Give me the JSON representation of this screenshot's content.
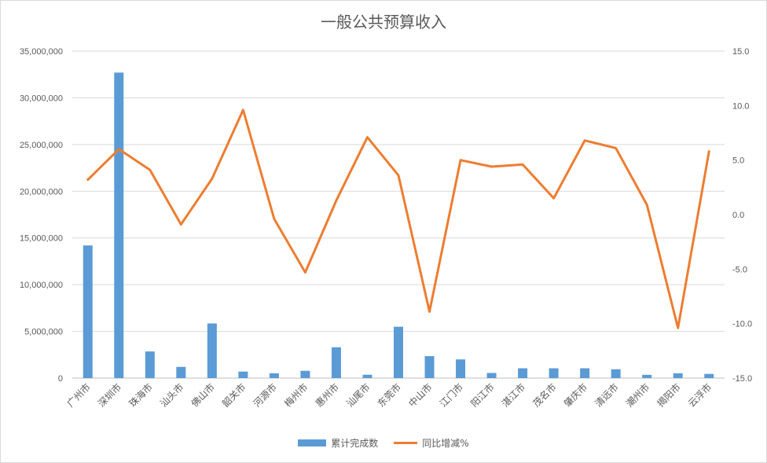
{
  "chart_data": {
    "type": "bar",
    "title": "一般公共预算收入",
    "categories": [
      "广州市",
      "深圳市",
      "珠海市",
      "汕头市",
      "佛山市",
      "韶关市",
      "河源市",
      "梅州市",
      "惠州市",
      "汕尾市",
      "东莞市",
      "中山市",
      "江门市",
      "阳江市",
      "湛江市",
      "茂名市",
      "肇庆市",
      "清远市",
      "潮州市",
      "揭阳市",
      "云浮市"
    ],
    "series": [
      {
        "name": "累计完成数",
        "type": "bar",
        "axis": "left",
        "color": "#5b9bd5",
        "values": [
          14200000,
          32700000,
          2850000,
          1200000,
          5850000,
          700000,
          520000,
          780000,
          3300000,
          360000,
          5500000,
          2350000,
          2000000,
          550000,
          1050000,
          1050000,
          1050000,
          950000,
          350000,
          520000,
          450000
        ]
      },
      {
        "name": "同比增减%",
        "type": "line",
        "axis": "right",
        "color": "#ed7d31",
        "values": [
          3.2,
          6.0,
          4.1,
          -0.9,
          3.3,
          9.6,
          -0.4,
          -5.3,
          1.3,
          7.1,
          3.6,
          -8.9,
          5.0,
          4.4,
          4.6,
          1.5,
          6.8,
          6.1,
          0.9,
          -10.4,
          5.8
        ]
      }
    ],
    "y_left": {
      "ylim": [
        0,
        35000000
      ],
      "ticks": [
        "0",
        "5,000,000",
        "10,000,000",
        "15,000,000",
        "20,000,000",
        "25,000,000",
        "30,000,000",
        "35,000,000"
      ]
    },
    "y_right": {
      "ylim": [
        -15,
        15
      ],
      "ticks": [
        "-15.0",
        "-10.0",
        "-5.0",
        "0.0",
        "5.0",
        "10.0",
        "15.0"
      ]
    },
    "grid": true,
    "legend": "bottom"
  }
}
